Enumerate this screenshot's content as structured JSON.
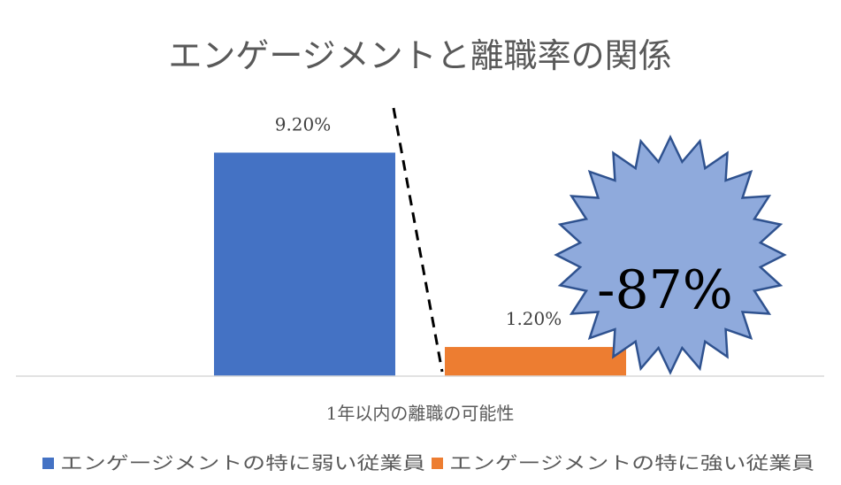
{
  "chart_data": {
    "type": "bar",
    "title": "エンゲージメントと離職率の関係",
    "categories": [
      "1年以内の離職の可能性"
    ],
    "series": [
      {
        "name": "エンゲージメントの特に弱い従業員",
        "values": [
          9.2
        ],
        "label": "9.20%",
        "color": "#4472C4"
      },
      {
        "name": "エンゲージメントの特に強い従業員",
        "values": [
          1.2
        ],
        "label": "1.20%",
        "color": "#ED7D31"
      }
    ],
    "ylim": [
      0,
      10.2
    ],
    "grid": false,
    "legend": "bottom",
    "annotation": {
      "text": "-87%",
      "shape": "starburst",
      "fill": "#8FAADC",
      "stroke": "#2F528F"
    }
  }
}
